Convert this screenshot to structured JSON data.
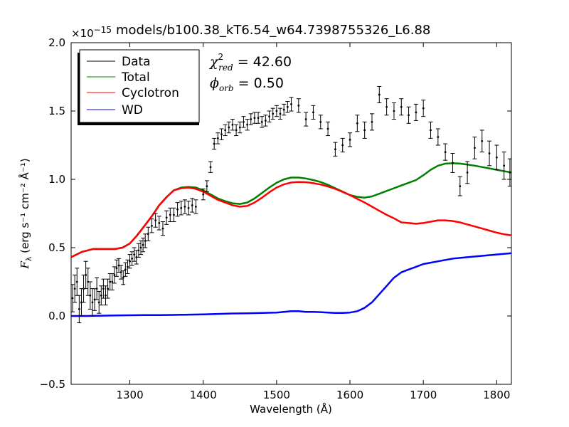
{
  "chart_data": {
    "type": "line",
    "title": "models/b100.38_kT6.54_w64.7398755326_L6.88",
    "xlabel": "Wavelength (Å)",
    "ylabel_main": "F",
    "ylabel_sub": "λ",
    "ylabel_units": "(erg s⁻¹ cm⁻² Å⁻¹)",
    "y_scale_mantissa": "×10",
    "y_scale_exponent": "−15",
    "xlim": [
      1220,
      1820
    ],
    "ylim": [
      -0.5,
      2.0
    ],
    "xticks": [
      1300,
      1400,
      1500,
      1600,
      1700,
      1800
    ],
    "xtick_labels": [
      "1300",
      "1400",
      "1500",
      "1600",
      "1700",
      "1800"
    ],
    "yticks": [
      -0.5,
      0.0,
      0.5,
      1.0,
      1.5,
      2.0
    ],
    "ytick_labels": [
      "−0.5",
      "0.0",
      "0.5",
      "1.0",
      "1.5",
      "2.0"
    ],
    "annotations": {
      "chi_symbol": "χ",
      "chi_sup": "2",
      "chi_sub": "red",
      "chi_value": " = 42.60",
      "phi_symbol": "ϕ",
      "phi_sub": "orb",
      "phi_value": " = 0.50"
    },
    "legend": {
      "position": "top-left",
      "entries": [
        {
          "label": "Data",
          "color": "#000000"
        },
        {
          "label": "Total",
          "color": "#008000"
        },
        {
          "label": "Cyclotron",
          "color": "#ff0000"
        },
        {
          "label": "WD",
          "color": "#0000ff"
        }
      ]
    },
    "series": [
      {
        "name": "Total",
        "color": "#008000",
        "x": [
          1220,
          1235,
          1250,
          1265,
          1280,
          1290,
          1300,
          1310,
          1320,
          1330,
          1340,
          1350,
          1360,
          1370,
          1380,
          1390,
          1400,
          1410,
          1420,
          1430,
          1440,
          1450,
          1460,
          1470,
          1480,
          1490,
          1500,
          1510,
          1520,
          1530,
          1540,
          1550,
          1560,
          1570,
          1580,
          1590,
          1600,
          1610,
          1620,
          1630,
          1640,
          1650,
          1660,
          1670,
          1680,
          1690,
          1700,
          1710,
          1720,
          1730,
          1740,
          1750,
          1760,
          1770,
          1780,
          1790,
          1800,
          1810,
          1820
        ],
        "y": [
          0.43,
          0.47,
          0.49,
          0.49,
          0.49,
          0.5,
          0.53,
          0.59,
          0.66,
          0.73,
          0.81,
          0.87,
          0.92,
          0.94,
          0.945,
          0.94,
          0.92,
          0.89,
          0.86,
          0.84,
          0.825,
          0.82,
          0.83,
          0.86,
          0.9,
          0.94,
          0.975,
          1.0,
          1.013,
          1.013,
          1.006,
          0.995,
          0.98,
          0.96,
          0.935,
          0.91,
          0.885,
          0.872,
          0.866,
          0.875,
          0.895,
          0.915,
          0.935,
          0.955,
          0.975,
          0.995,
          1.03,
          1.07,
          1.1,
          1.115,
          1.118,
          1.115,
          1.108,
          1.1,
          1.09,
          1.08,
          1.07,
          1.06,
          1.05
        ]
      },
      {
        "name": "Cyclotron",
        "color": "#ff0000",
        "x": [
          1220,
          1235,
          1250,
          1265,
          1280,
          1290,
          1300,
          1310,
          1320,
          1330,
          1340,
          1350,
          1360,
          1370,
          1380,
          1390,
          1400,
          1410,
          1420,
          1430,
          1440,
          1450,
          1460,
          1470,
          1480,
          1490,
          1500,
          1510,
          1520,
          1530,
          1540,
          1550,
          1560,
          1570,
          1580,
          1590,
          1600,
          1610,
          1620,
          1630,
          1640,
          1650,
          1660,
          1670,
          1680,
          1690,
          1700,
          1710,
          1720,
          1730,
          1740,
          1750,
          1760,
          1770,
          1780,
          1790,
          1800,
          1810,
          1820
        ],
        "y": [
          0.43,
          0.47,
          0.49,
          0.49,
          0.49,
          0.5,
          0.53,
          0.59,
          0.66,
          0.73,
          0.81,
          0.87,
          0.92,
          0.935,
          0.94,
          0.93,
          0.91,
          0.88,
          0.85,
          0.83,
          0.81,
          0.8,
          0.805,
          0.83,
          0.865,
          0.905,
          0.94,
          0.963,
          0.977,
          0.98,
          0.979,
          0.972,
          0.962,
          0.948,
          0.93,
          0.908,
          0.885,
          0.857,
          0.83,
          0.8,
          0.77,
          0.74,
          0.715,
          0.685,
          0.68,
          0.675,
          0.68,
          0.69,
          0.7,
          0.7,
          0.695,
          0.685,
          0.67,
          0.655,
          0.64,
          0.625,
          0.61,
          0.598,
          0.59
        ]
      },
      {
        "name": "WD",
        "color": "#0000ff",
        "x": [
          1220,
          1240,
          1260,
          1280,
          1300,
          1320,
          1340,
          1360,
          1380,
          1400,
          1420,
          1440,
          1460,
          1480,
          1500,
          1510,
          1520,
          1530,
          1540,
          1550,
          1560,
          1570,
          1580,
          1590,
          1600,
          1610,
          1620,
          1630,
          1640,
          1650,
          1660,
          1670,
          1680,
          1690,
          1700,
          1710,
          1720,
          1740,
          1760,
          1780,
          1800,
          1820
        ],
        "y": [
          0.0,
          0.0,
          0.002,
          0.004,
          0.005,
          0.006,
          0.007,
          0.008,
          0.01,
          0.012,
          0.015,
          0.018,
          0.02,
          0.022,
          0.025,
          0.03,
          0.035,
          0.035,
          0.03,
          0.03,
          0.028,
          0.025,
          0.022,
          0.022,
          0.025,
          0.035,
          0.06,
          0.1,
          0.16,
          0.22,
          0.28,
          0.32,
          0.34,
          0.36,
          0.38,
          0.39,
          0.4,
          0.42,
          0.43,
          0.44,
          0.45,
          0.46
        ]
      },
      {
        "name": "Data",
        "color": "#000000",
        "type": "errorbar",
        "x": [
          1222,
          1225,
          1228,
          1231,
          1234,
          1237,
          1240,
          1243,
          1246,
          1249,
          1252,
          1255,
          1258,
          1261,
          1264,
          1267,
          1270,
          1273,
          1276,
          1279,
          1282,
          1285,
          1288,
          1291,
          1294,
          1297,
          1300,
          1303,
          1306,
          1309,
          1312,
          1315,
          1318,
          1321,
          1325,
          1330,
          1335,
          1340,
          1345,
          1350,
          1355,
          1360,
          1365,
          1370,
          1375,
          1380,
          1385,
          1390,
          1400,
          1405,
          1410,
          1415,
          1420,
          1425,
          1430,
          1435,
          1440,
          1445,
          1450,
          1455,
          1460,
          1465,
          1470,
          1475,
          1480,
          1485,
          1490,
          1495,
          1500,
          1505,
          1510,
          1515,
          1520,
          1530,
          1540,
          1550,
          1560,
          1570,
          1580,
          1590,
          1600,
          1610,
          1620,
          1630,
          1640,
          1650,
          1660,
          1670,
          1680,
          1690,
          1700,
          1710,
          1720,
          1730,
          1740,
          1750,
          1760,
          1770,
          1780,
          1790,
          1800,
          1810,
          1818
        ],
        "y": [
          0.13,
          0.2,
          0.25,
          0.05,
          0.1,
          0.2,
          0.3,
          0.25,
          0.15,
          0.1,
          0.12,
          0.2,
          0.1,
          0.15,
          0.2,
          0.15,
          0.2,
          0.25,
          0.25,
          0.3,
          0.35,
          0.37,
          0.32,
          0.28,
          0.34,
          0.36,
          0.4,
          0.42,
          0.45,
          0.43,
          0.48,
          0.5,
          0.52,
          0.55,
          0.6,
          0.66,
          0.7,
          0.68,
          0.64,
          0.72,
          0.74,
          0.74,
          0.78,
          0.79,
          0.8,
          0.79,
          0.81,
          0.8,
          0.89,
          0.95,
          1.09,
          1.26,
          1.3,
          1.33,
          1.36,
          1.38,
          1.4,
          1.36,
          1.38,
          1.42,
          1.4,
          1.44,
          1.45,
          1.45,
          1.42,
          1.43,
          1.46,
          1.48,
          1.5,
          1.48,
          1.51,
          1.53,
          1.55,
          1.54,
          1.44,
          1.49,
          1.42,
          1.37,
          1.22,
          1.25,
          1.29,
          1.41,
          1.36,
          1.42,
          1.62,
          1.53,
          1.5,
          1.53,
          1.47,
          1.49,
          1.52,
          1.36,
          1.31,
          1.2,
          1.12,
          0.95,
          1.05,
          1.23,
          1.28,
          1.19,
          1.16,
          1.1,
          1.05
        ],
        "yerr": [
          0.1,
          0.1,
          0.1,
          0.1,
          0.1,
          0.1,
          0.1,
          0.1,
          0.1,
          0.1,
          0.08,
          0.08,
          0.08,
          0.07,
          0.07,
          0.07,
          0.07,
          0.06,
          0.06,
          0.06,
          0.06,
          0.05,
          0.05,
          0.05,
          0.05,
          0.05,
          0.05,
          0.05,
          0.05,
          0.05,
          0.05,
          0.05,
          0.05,
          0.05,
          0.05,
          0.05,
          0.05,
          0.05,
          0.05,
          0.05,
          0.05,
          0.05,
          0.05,
          0.05,
          0.05,
          0.05,
          0.05,
          0.05,
          0.04,
          0.04,
          0.04,
          0.04,
          0.04,
          0.04,
          0.04,
          0.04,
          0.04,
          0.04,
          0.04,
          0.04,
          0.04,
          0.04,
          0.04,
          0.04,
          0.04,
          0.04,
          0.04,
          0.04,
          0.04,
          0.04,
          0.04,
          0.04,
          0.05,
          0.05,
          0.05,
          0.05,
          0.05,
          0.05,
          0.05,
          0.05,
          0.05,
          0.06,
          0.06,
          0.06,
          0.06,
          0.06,
          0.06,
          0.06,
          0.06,
          0.06,
          0.06,
          0.06,
          0.06,
          0.06,
          0.07,
          0.07,
          0.08,
          0.08,
          0.08,
          0.09,
          0.09,
          0.1,
          0.1
        ]
      }
    ]
  }
}
